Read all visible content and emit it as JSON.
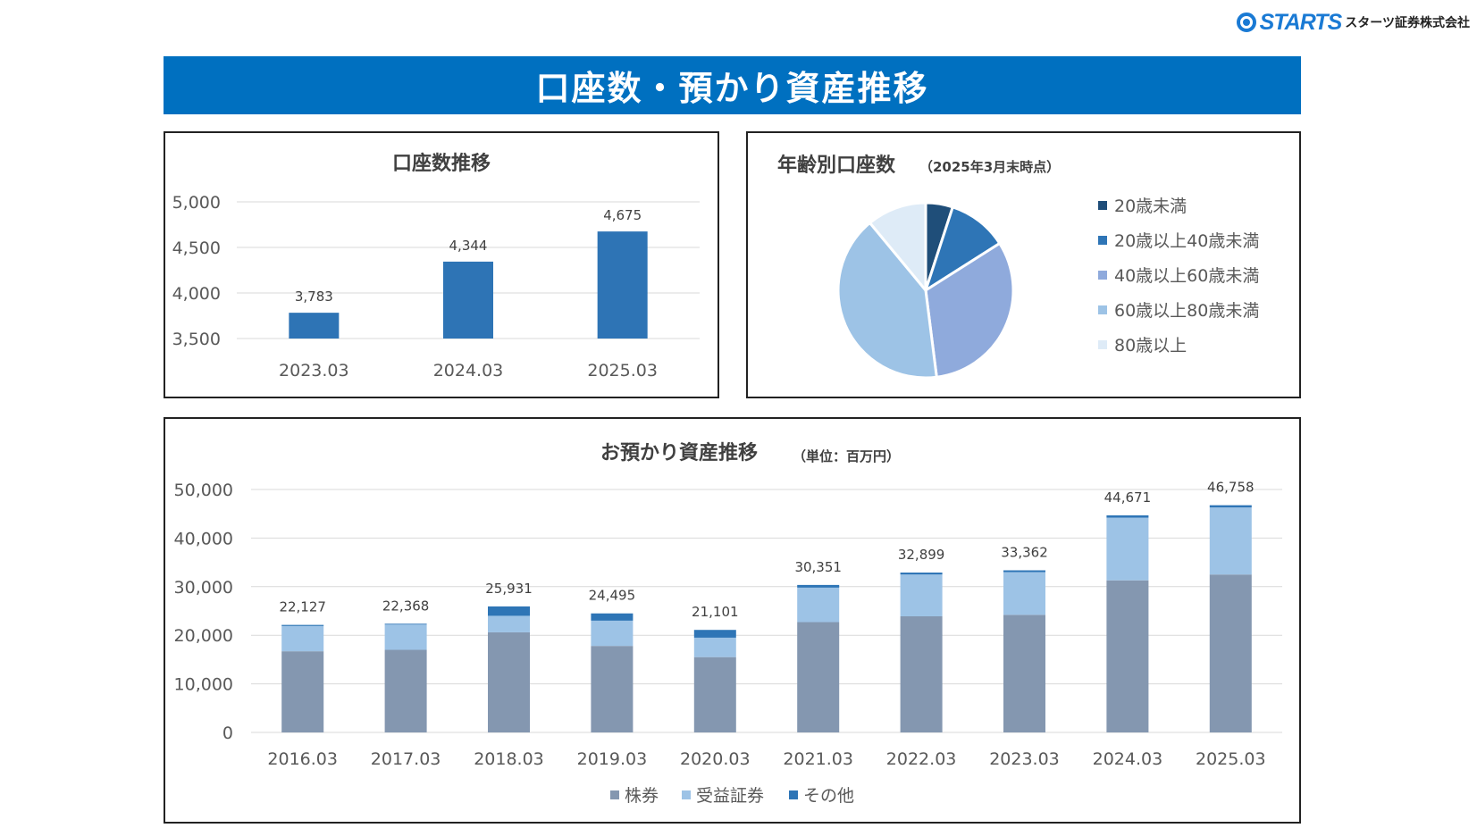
{
  "header": {
    "logo_text": "STARTS",
    "logo_sub": "スターツ証券株式会社",
    "title": "口座数・預かり資産推移"
  },
  "colors": {
    "banner": "#0070c0",
    "bar_blue": "#2e74b5",
    "stocks": "#8497b0",
    "funds": "#9dc3e6",
    "other": "#2e75b6",
    "age": [
      "#1f4e79",
      "#2e75b6",
      "#8faadc",
      "#9dc3e6",
      "#deebf7"
    ]
  },
  "chart_data": [
    {
      "id": "accounts",
      "type": "bar",
      "title": "口座数推移",
      "categories": [
        "2023.03",
        "2024.03",
        "2025.03"
      ],
      "values": [
        3783,
        4344,
        4675
      ],
      "value_labels": [
        "3,783",
        "4,344",
        "4,675"
      ],
      "yticks": [
        "5,000",
        "4,500",
        "4,000",
        "3,500"
      ],
      "ylim": [
        3500,
        5000
      ],
      "grid": true
    },
    {
      "id": "age",
      "type": "pie",
      "title": "年齢別口座数",
      "subtitle": "（2025年3月末時点）",
      "labels": [
        "20歳未満",
        "20歳以上40歳未満",
        "40歳以上60歳未満",
        "60歳以上80歳未満",
        "80歳以上"
      ],
      "values": [
        5,
        11,
        32,
        41,
        11
      ],
      "legend": "right"
    },
    {
      "id": "assets",
      "type": "bar",
      "stacked": true,
      "title": "お預かり資産推移",
      "subtitle": "（単位：百万円）",
      "categories": [
        "2016.03",
        "2017.03",
        "2018.03",
        "2019.03",
        "2020.03",
        "2021.03",
        "2022.03",
        "2023.03",
        "2024.03",
        "2025.03"
      ],
      "series": [
        {
          "name": "株券",
          "values": [
            16700,
            17000,
            20600,
            17800,
            15500,
            22700,
            23900,
            24200,
            31300,
            32500
          ]
        },
        {
          "name": "受益証券",
          "values": [
            5200,
            5200,
            3400,
            5200,
            4000,
            7100,
            8600,
            8800,
            12900,
            13800
          ]
        },
        {
          "name": "その他",
          "values": [
            227,
            168,
            1931,
            1495,
            1601,
            551,
            399,
            362,
            471,
            458
          ]
        }
      ],
      "totals": [
        "22,127",
        "22,368",
        "25,931",
        "24,495",
        "21,101",
        "30,351",
        "32,899",
        "33,362",
        "44,671",
        "46,758"
      ],
      "total_values": [
        22127,
        22368,
        25931,
        24495,
        21101,
        30351,
        32899,
        33362,
        44671,
        46758
      ],
      "yticks": [
        "50,000",
        "40,000",
        "30,000",
        "20,000",
        "10,000",
        "0"
      ],
      "ylim": [
        0,
        50000
      ],
      "legend": "bottom",
      "grid": true
    }
  ]
}
